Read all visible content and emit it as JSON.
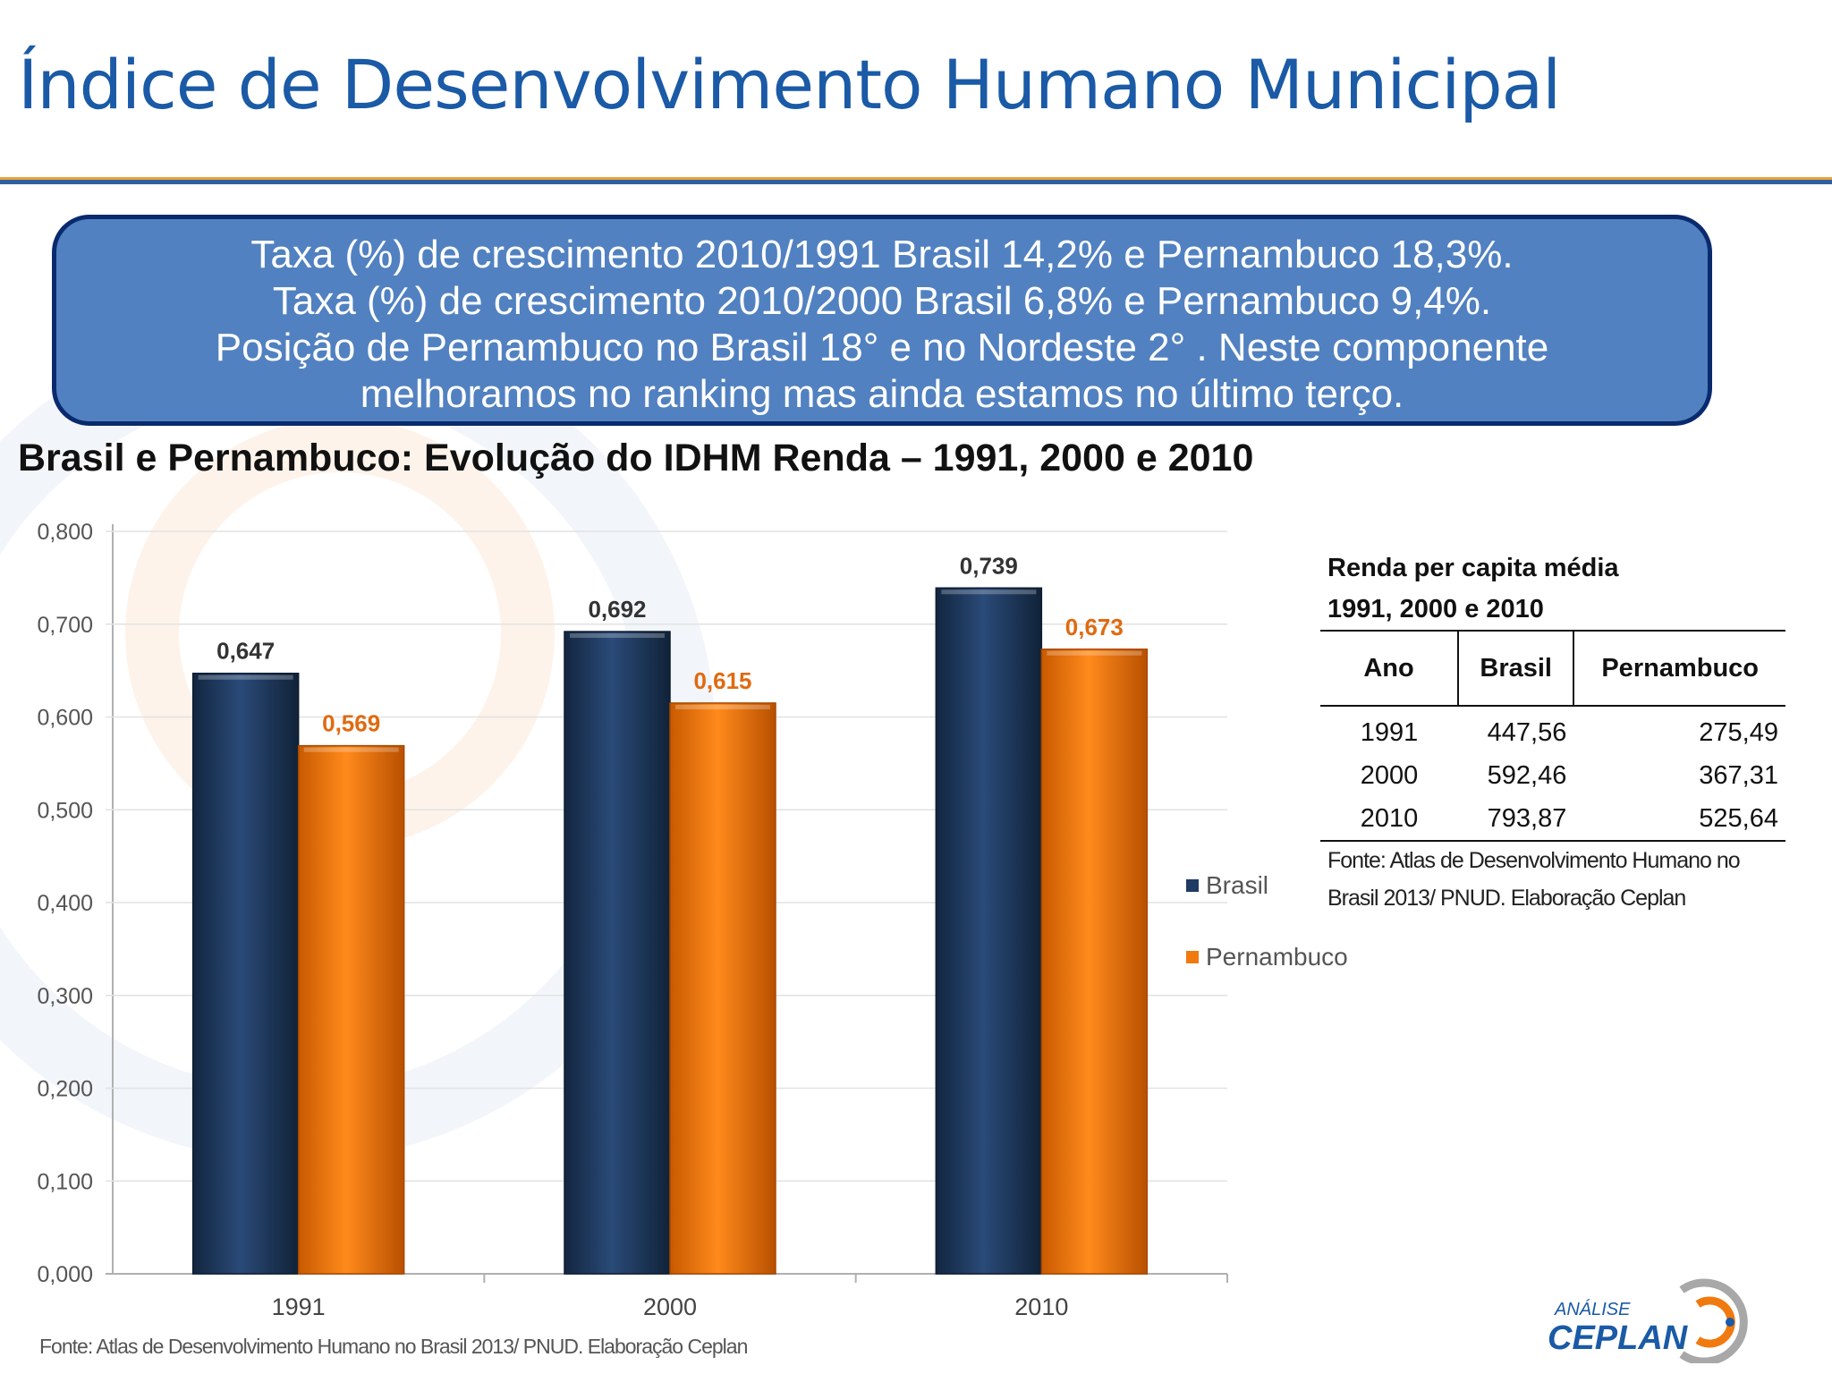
{
  "header": {
    "title": "Índice de Desenvolvimento Humano Municipal"
  },
  "info_box": {
    "lines": [
      "Taxa (%) de crescimento 2010/1991 Brasil 14,2% e Pernambuco 18,3%.",
      "Taxa (%) de crescimento 2010/2000 Brasil 6,8% e Pernambuco 9,4%.",
      "Posição de Pernambuco no Brasil 18° e no Nordeste 2° . Neste componente",
      "melhoramos no ranking mas ainda estamos no último terço."
    ]
  },
  "chart_heading": "Brasil e Pernambuco: Evolução do IDHM Renda – 1991, 2000 e 2010",
  "chart_data": {
    "type": "bar",
    "categories": [
      "1991",
      "2000",
      "2010"
    ],
    "series": [
      {
        "name": "Brasil",
        "values": [
          0.647,
          0.692,
          0.739
        ],
        "labels": [
          "0,647",
          "0,692",
          "0,739"
        ],
        "color": "#1f3a63"
      },
      {
        "name": "Pernambuco",
        "values": [
          0.569,
          0.615,
          0.673
        ],
        "labels": [
          "0,569",
          "0,615",
          "0,673"
        ],
        "color": "#f07a10"
      }
    ],
    "label_colors": [
      "#333333",
      "#e06a10"
    ],
    "ylim": [
      0,
      0.8
    ],
    "yticks": [
      0,
      0.1,
      0.2,
      0.3,
      0.4,
      0.5,
      0.6,
      0.7,
      0.8
    ],
    "ytick_labels": [
      "0,000",
      "0,100",
      "0,200",
      "0,300",
      "0,400",
      "0,500",
      "0,600",
      "0,700",
      "0,800"
    ],
    "grid": true,
    "legend": "right",
    "source": "Fonte: Atlas de Desenvolvimento Humano no Brasil 2013/ PNUD. Elaboração Ceplan"
  },
  "renda_table": {
    "title_lines": [
      "Renda per capita média",
      "1991, 2000 e 2010"
    ],
    "headers": [
      "Ano",
      "Brasil",
      "Pernambuco"
    ],
    "rows": [
      [
        "1991",
        "447,56",
        "275,49"
      ],
      [
        "2000",
        "592,46",
        "367,31"
      ],
      [
        "2010",
        "793,87",
        "525,64"
      ]
    ],
    "source_lines": [
      "Fonte: Atlas de Desenvolvimento Humano no",
      "Brasil 2013/ PNUD. Elaboração Ceplan"
    ]
  },
  "logo": {
    "top_text": "ANÁLISE",
    "main_text": "CEPLAN"
  }
}
